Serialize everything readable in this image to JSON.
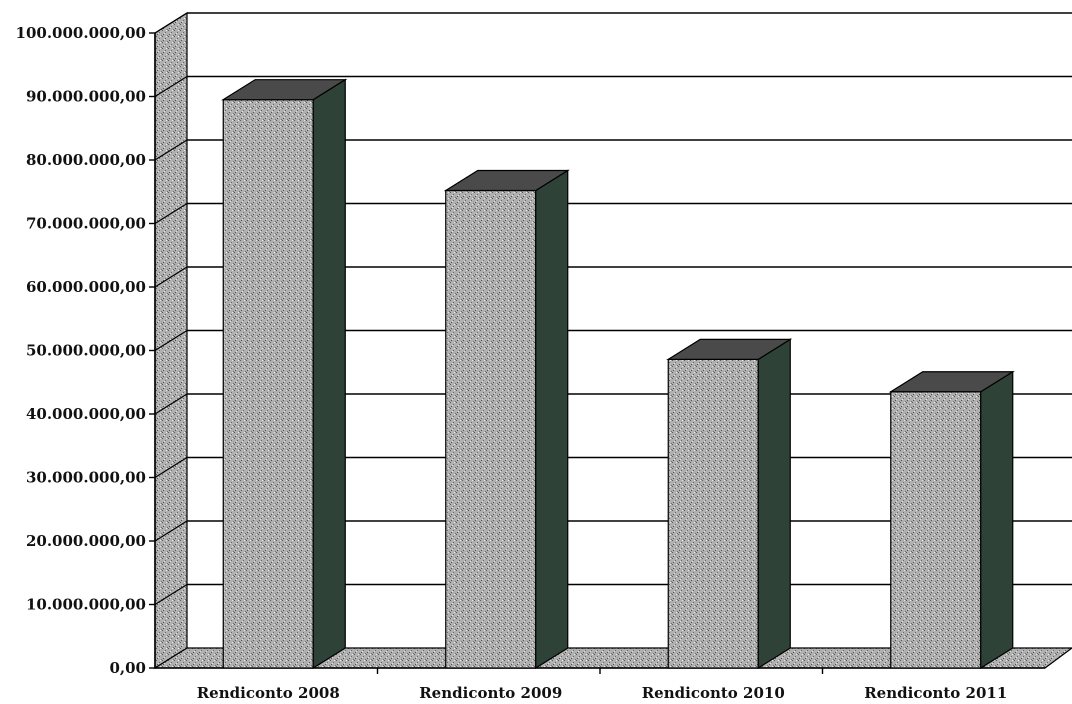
{
  "chart_data": {
    "type": "bar",
    "style": "3d-column",
    "categories": [
      "Rendiconto 2008",
      "Rendiconto 2009",
      "Rendiconto 2010",
      "Rendiconto 2011"
    ],
    "series": [
      {
        "values": [
          89500000,
          75200000,
          48600000,
          43500000
        ]
      }
    ],
    "yticks": [
      "0,00",
      "10.000.000,00",
      "20.000.000,00",
      "30.000.000,00",
      "40.000.000,00",
      "50.000.000,00",
      "60.000.000,00",
      "70.000.000,00",
      "80.000.000,00",
      "90.000.000,00",
      "100.000.000,00"
    ],
    "ylim": [
      0,
      100000000
    ],
    "grid": true,
    "legend": "none",
    "colors": {
      "bar_front": "#8f8f8f",
      "bar_side": "#2e4238",
      "bar_top": "#4a4a4a",
      "wall": "#a8a8a8",
      "floor": "#9a9a9a",
      "grid": "#000000"
    }
  }
}
